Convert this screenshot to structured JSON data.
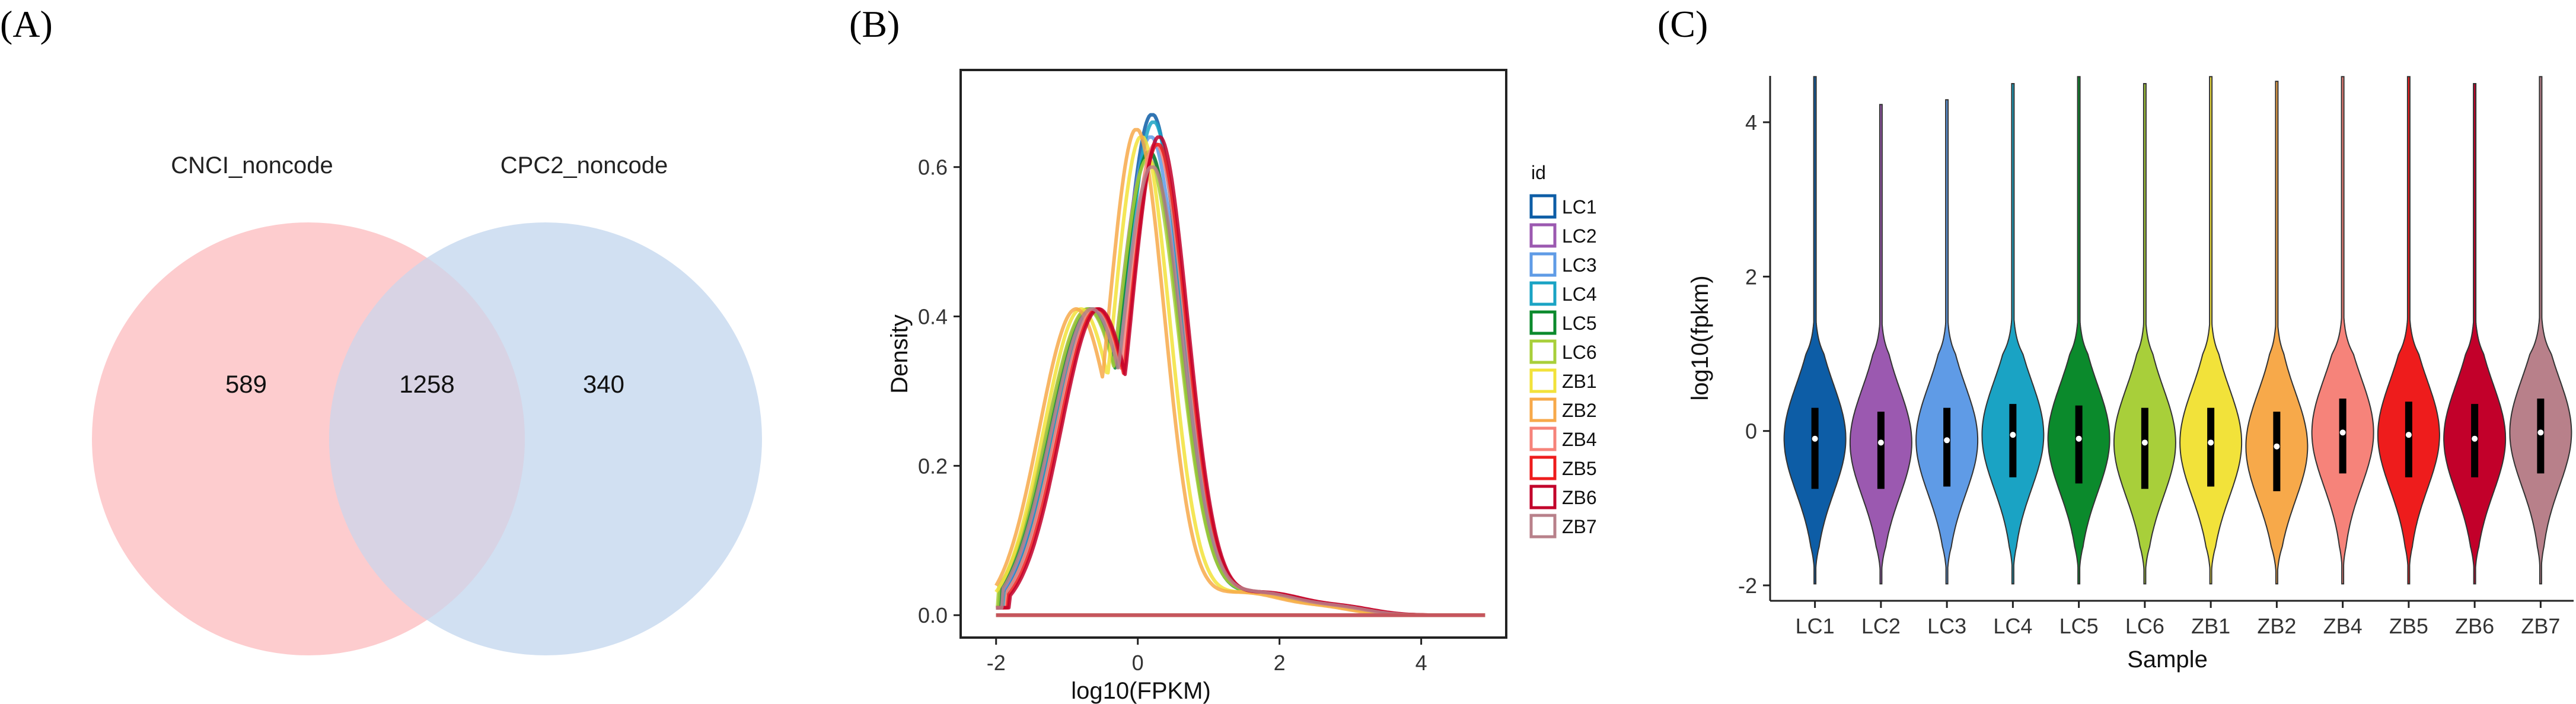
{
  "panels": {
    "a": {
      "label": "(A)",
      "letter": "A"
    },
    "b": {
      "label": "(B)",
      "letter": "B"
    },
    "c": {
      "label": "(C)",
      "letter": "C"
    }
  },
  "colors": {
    "LC1": "#0d5da6",
    "LC2": "#9b59b0",
    "LC3": "#5f9be6",
    "LC4": "#1aa3c4",
    "LC5": "#0b8a2c",
    "LC6": "#a8cf3a",
    "ZB1": "#f2e23a",
    "ZB2": "#f7a94a",
    "ZB4": "#f6837a",
    "ZB5": "#ee1c1c",
    "ZB6": "#c2002a",
    "ZB7": "#b8808a",
    "venn_left": "#fdc6c9",
    "venn_right": "#c9daf0"
  },
  "chart_data": [
    {
      "type": "venn",
      "sets": [
        "CNCI_noncode",
        "CPC2_noncode"
      ],
      "values": {
        "only_left": "589",
        "both": "1258",
        "only_right": "340"
      }
    },
    {
      "type": "line",
      "title": "",
      "xlabel": "log10(FPKM)",
      "ylabel": "Density",
      "xlim": [
        -2.5,
        5.2
      ],
      "ylim": [
        -0.03,
        0.73
      ],
      "xticks": [
        "-2",
        "0",
        "2",
        "4"
      ],
      "yticks": [
        "0.0",
        "0.2",
        "0.4",
        "0.6"
      ],
      "legend_title": "id",
      "legend_position": "right",
      "x": [
        -2.0,
        -1.8,
        -1.6,
        -1.4,
        -1.2,
        -1.0,
        -0.8,
        -0.6,
        -0.4,
        -0.2,
        0.0,
        0.1,
        0.2,
        0.3,
        0.4,
        0.5,
        0.6,
        0.7,
        0.8,
        1.0,
        1.2,
        1.4,
        1.6,
        1.8,
        2.0,
        2.2,
        2.4,
        2.6,
        2.8,
        3.0,
        3.2,
        3.4,
        3.6,
        4.0,
        4.4,
        4.9
      ],
      "series": [
        {
          "name": "LC1",
          "shift": 0.1,
          "peak": 0.67,
          "widthScale": 1.0
        },
        {
          "name": "LC2",
          "shift": 0.05,
          "peak": 0.62,
          "widthScale": 1.05
        },
        {
          "name": "LC3",
          "shift": 0.08,
          "peak": 0.64,
          "widthScale": 1.0
        },
        {
          "name": "LC4",
          "shift": 0.12,
          "peak": 0.66,
          "widthScale": 0.98
        },
        {
          "name": "LC5",
          "shift": 0.06,
          "peak": 0.62,
          "widthScale": 1.02
        },
        {
          "name": "LC6",
          "shift": 0.04,
          "peak": 0.61,
          "widthScale": 1.04
        },
        {
          "name": "ZB1",
          "shift": -0.05,
          "peak": 0.64,
          "widthScale": 0.96
        },
        {
          "name": "ZB2",
          "shift": -0.12,
          "peak": 0.65,
          "widthScale": 0.95
        },
        {
          "name": "ZB4",
          "shift": 0.15,
          "peak": 0.63,
          "widthScale": 1.0
        },
        {
          "name": "ZB5",
          "shift": 0.18,
          "peak": 0.63,
          "widthScale": 0.98
        },
        {
          "name": "ZB6",
          "shift": 0.2,
          "peak": 0.64,
          "widthScale": 0.97
        },
        {
          "name": "ZB7",
          "shift": 0.1,
          "peak": 0.6,
          "widthScale": 1.03
        }
      ],
      "baseline_y": 0.0
    },
    {
      "type": "violin",
      "xlabel": "Sample",
      "ylabel": "log10(fpkm)",
      "ylim": [
        -2.2,
        4.6
      ],
      "yticks": [
        "-2",
        "0",
        "2",
        "4"
      ],
      "categories": [
        "LC1",
        "LC2",
        "LC3",
        "LC4",
        "LC5",
        "LC6",
        "ZB1",
        "ZB2",
        "ZB4",
        "ZB5",
        "ZB6",
        "ZB7"
      ],
      "series": [
        {
          "name": "LC1",
          "min": -1.98,
          "max": 4.6,
          "q1": -0.75,
          "median": -0.1,
          "q3": 0.3
        },
        {
          "name": "LC2",
          "min": -1.98,
          "max": 4.25,
          "q1": -0.75,
          "median": -0.15,
          "q3": 0.25
        },
        {
          "name": "LC3",
          "min": -1.98,
          "max": 4.3,
          "q1": -0.72,
          "median": -0.12,
          "q3": 0.3
        },
        {
          "name": "LC4",
          "min": -1.98,
          "max": 4.5,
          "q1": -0.6,
          "median": -0.05,
          "q3": 0.35
        },
        {
          "name": "LC5",
          "min": -1.98,
          "max": 4.6,
          "q1": -0.68,
          "median": -0.1,
          "q3": 0.33
        },
        {
          "name": "LC6",
          "min": -1.98,
          "max": 4.5,
          "q1": -0.75,
          "median": -0.15,
          "q3": 0.3
        },
        {
          "name": "ZB1",
          "min": -1.98,
          "max": 4.6,
          "q1": -0.72,
          "median": -0.15,
          "q3": 0.3
        },
        {
          "name": "ZB2",
          "min": -1.98,
          "max": 4.55,
          "q1": -0.78,
          "median": -0.2,
          "q3": 0.25
        },
        {
          "name": "ZB4",
          "min": -1.98,
          "max": 4.6,
          "q1": -0.55,
          "median": -0.02,
          "q3": 0.42
        },
        {
          "name": "ZB5",
          "min": -1.98,
          "max": 4.6,
          "q1": -0.6,
          "median": -0.05,
          "q3": 0.38
        },
        {
          "name": "ZB6",
          "min": -1.98,
          "max": 4.5,
          "q1": -0.6,
          "median": -0.1,
          "q3": 0.35
        },
        {
          "name": "ZB7",
          "min": -1.98,
          "max": 4.6,
          "q1": -0.55,
          "median": -0.02,
          "q3": 0.42
        }
      ]
    }
  ]
}
